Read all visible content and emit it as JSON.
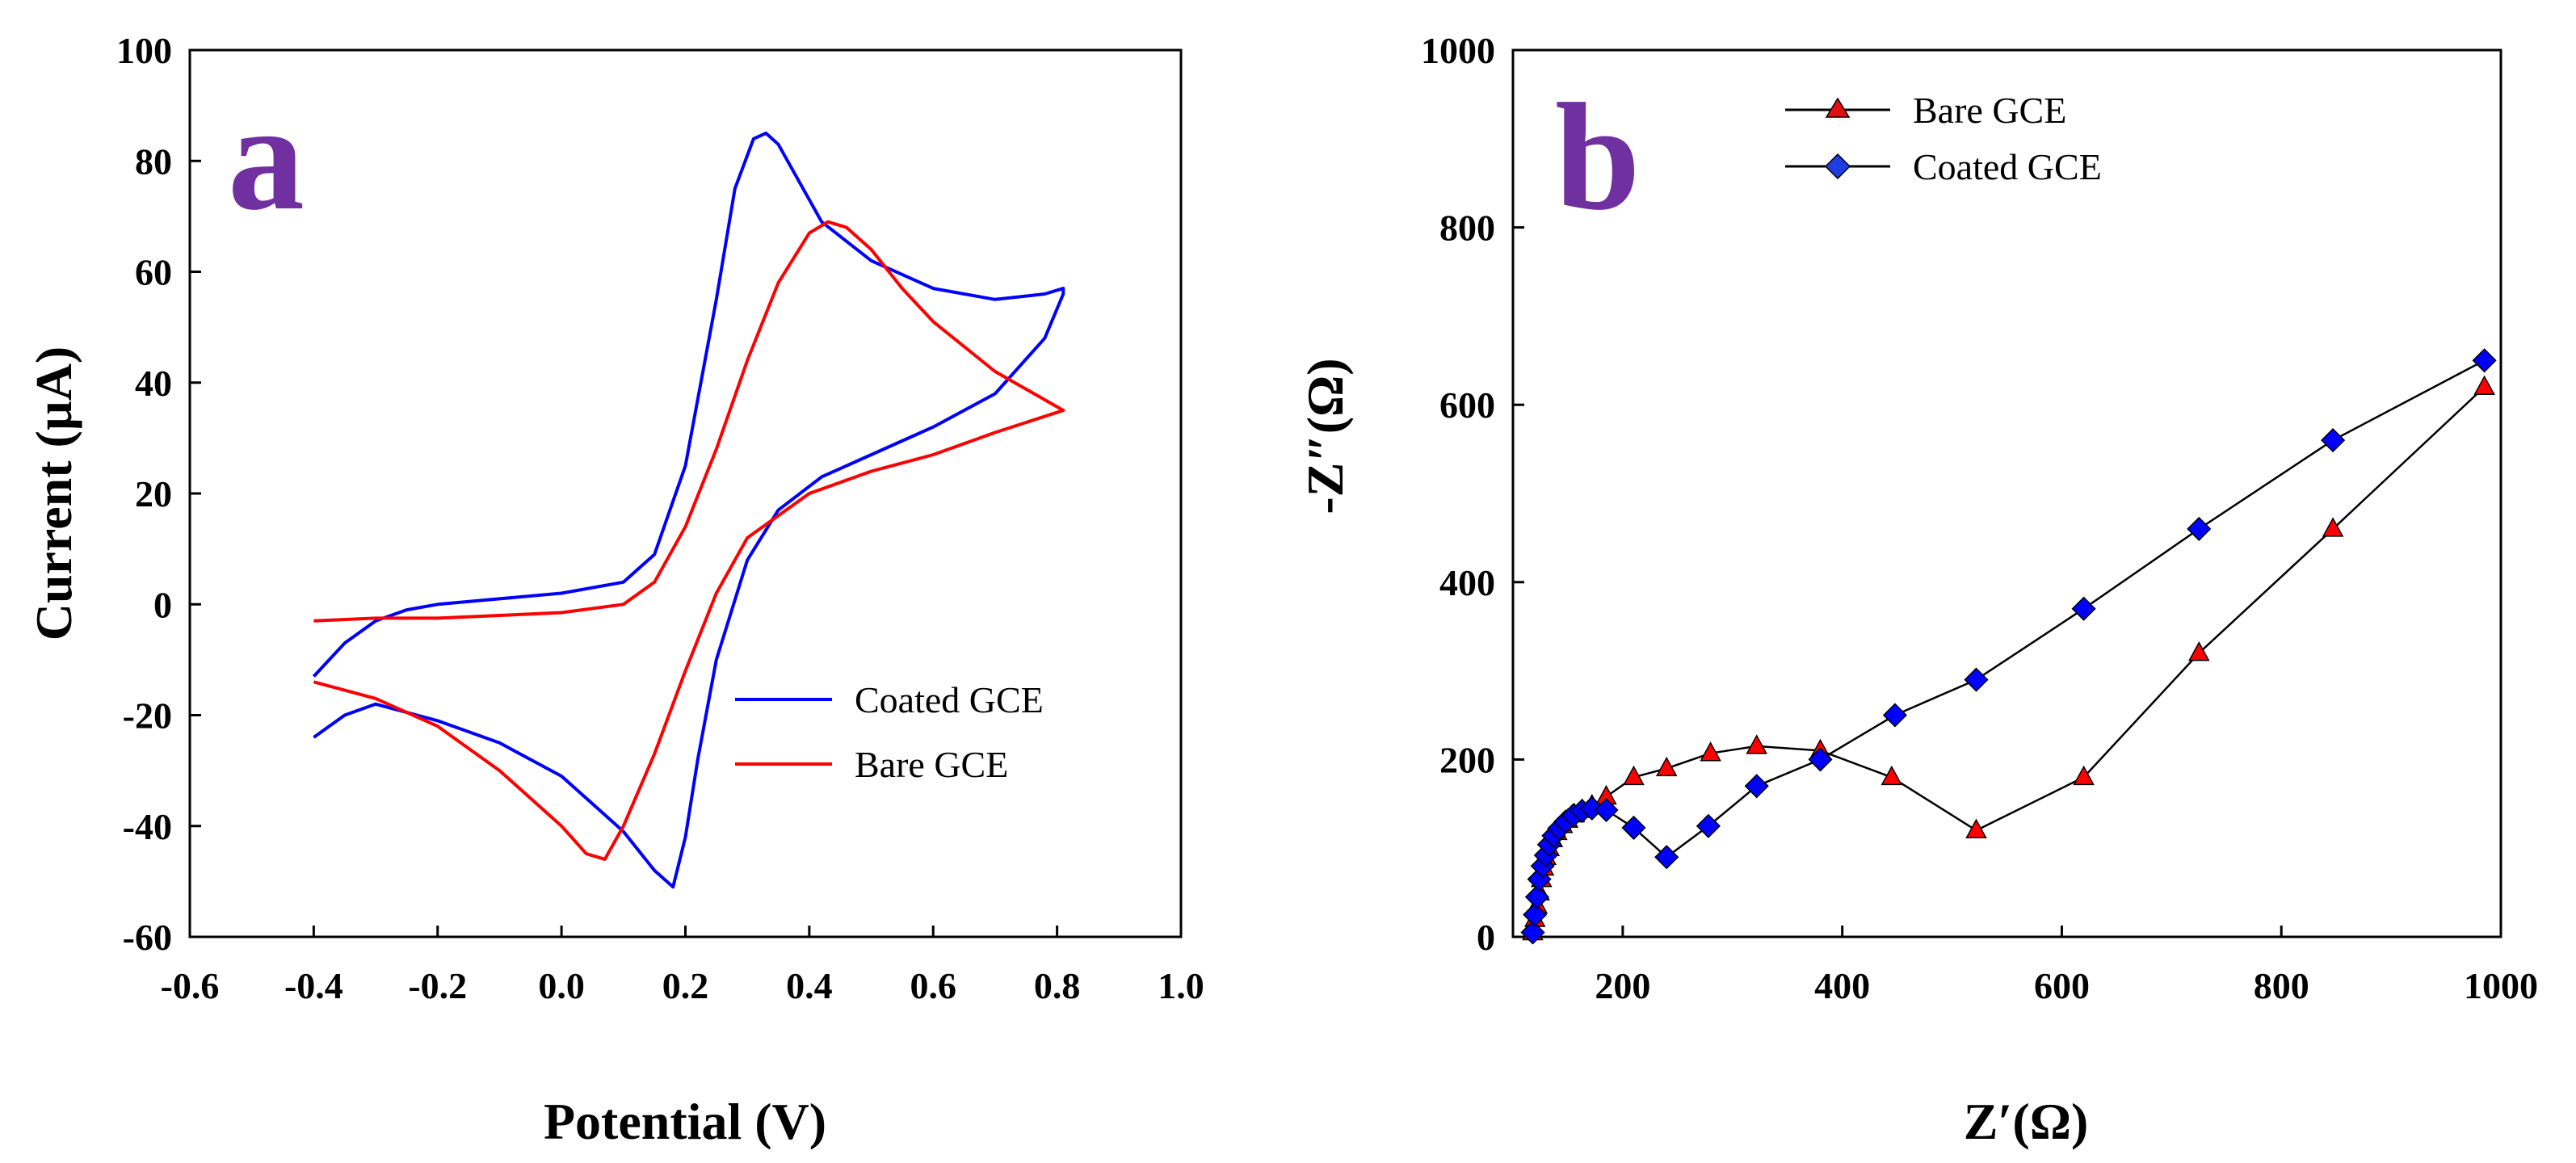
{
  "chart_data": [
    {
      "panel": "a",
      "type": "line",
      "panel_label": "a",
      "xlabel": "Potential (V)",
      "ylabel": "Current (µA)",
      "xlim": [
        -0.6,
        1.0
      ],
      "ylim": [
        -60,
        100
      ],
      "xticks": [
        "-0.6",
        "-0.4",
        "-0.2",
        "0.0",
        "0.2",
        "0.4",
        "0.6",
        "0.8",
        "1.0"
      ],
      "yticks": [
        "-60",
        "-40",
        "-20",
        "0",
        "20",
        "40",
        "60",
        "80",
        "100"
      ],
      "legend_position": "lower-right",
      "series": [
        {
          "name": "Coated GCE",
          "color": "#0000ff",
          "x": [
            -0.4,
            -0.35,
            -0.3,
            -0.25,
            -0.2,
            -0.1,
            0.0,
            0.1,
            0.15,
            0.2,
            0.25,
            0.28,
            0.31,
            0.33,
            0.35,
            0.38,
            0.42,
            0.5,
            0.6,
            0.7,
            0.78,
            0.81,
            0.81,
            0.78,
            0.7,
            0.6,
            0.5,
            0.42,
            0.35,
            0.3,
            0.25,
            0.22,
            0.2,
            0.18,
            0.15,
            0.1,
            0.05,
            0.0,
            -0.1,
            -0.2,
            -0.3,
            -0.35,
            -0.4
          ],
          "y": [
            -13,
            -7,
            -3,
            -1,
            0,
            1,
            2,
            4,
            9,
            25,
            55,
            75,
            84,
            85,
            83,
            77,
            69,
            62,
            57,
            55,
            56,
            57,
            56,
            48,
            38,
            32,
            27,
            23,
            17,
            8,
            -10,
            -28,
            -42,
            -51,
            -48,
            -41,
            -36,
            -31,
            -25,
            -21,
            -18,
            -20,
            -24
          ]
        },
        {
          "name": "Bare GCE",
          "color": "#ff0000",
          "x": [
            -0.4,
            -0.3,
            -0.2,
            -0.1,
            0.0,
            0.1,
            0.15,
            0.2,
            0.25,
            0.3,
            0.35,
            0.4,
            0.43,
            0.46,
            0.5,
            0.55,
            0.6,
            0.7,
            0.81,
            0.7,
            0.6,
            0.5,
            0.4,
            0.3,
            0.25,
            0.2,
            0.15,
            0.1,
            0.07,
            0.04,
            0.0,
            -0.1,
            -0.2,
            -0.3,
            -0.4
          ],
          "y": [
            -3,
            -2.5,
            -2.5,
            -2,
            -1.5,
            0,
            4,
            14,
            28,
            44,
            58,
            67,
            69,
            68,
            64,
            57,
            51,
            42,
            35,
            31,
            27,
            24,
            20,
            12,
            2,
            -12,
            -27,
            -40,
            -46,
            -45,
            -40,
            -30,
            -22,
            -17,
            -14
          ]
        }
      ]
    },
    {
      "panel": "b",
      "type": "line",
      "panel_label": "b",
      "xlabel": "Z′(Ω)",
      "ylabel": "-Z″(Ω)",
      "xlim": [
        100,
        1000
      ],
      "ylim": [
        0,
        1000
      ],
      "xticks": [
        "200",
        "400",
        "600",
        "800",
        "1000"
      ],
      "yticks": [
        "0",
        "200",
        "400",
        "600",
        "800",
        "1000"
      ],
      "legend_position": "upper-left",
      "series": [
        {
          "name": "Bare GCE",
          "color": "#ff0000",
          "marker": "triangle",
          "x": [
            118,
            120,
            122,
            124,
            126,
            128,
            130,
            133,
            136,
            140,
            145,
            150,
            156,
            163,
            172,
            185,
            210,
            240,
            280,
            322,
            380,
            445,
            522,
            620,
            725,
            847,
            985
          ],
          "y": [
            5,
            20,
            35,
            50,
            65,
            78,
            90,
            100,
            110,
            118,
            126,
            132,
            138,
            143,
            148,
            158,
            180,
            190,
            207,
            215,
            210,
            180,
            120,
            180,
            320,
            460,
            620
          ]
        },
        {
          "name": "Coated GCE",
          "color": "#0000ff",
          "marker": "diamond",
          "x": [
            118,
            120,
            122,
            124,
            127,
            130,
            133,
            137,
            142,
            148,
            155,
            163,
            172,
            185,
            210,
            240,
            278,
            322,
            380,
            448,
            522,
            620,
            725,
            847,
            985
          ],
          "y": [
            5,
            25,
            45,
            65,
            80,
            92,
            104,
            114,
            122,
            130,
            137,
            142,
            145,
            143,
            123,
            90,
            125,
            170,
            200,
            250,
            290,
            370,
            460,
            560,
            650
          ]
        }
      ]
    }
  ]
}
